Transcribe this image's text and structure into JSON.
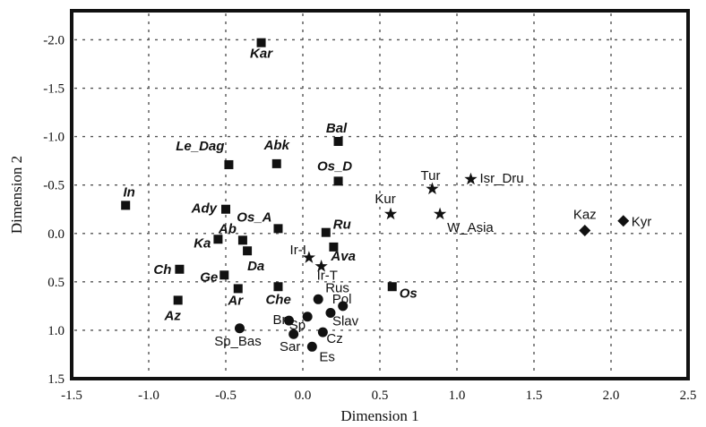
{
  "chart_data": {
    "type": "scatter",
    "xlabel": "Dimension 1",
    "ylabel": "Dimension 2",
    "xlim": [
      -1.5,
      2.5
    ],
    "ylim": [
      1.5,
      -2.3
    ],
    "y_reversed": true,
    "grid": true,
    "grid_style": "dashed",
    "legend": "none",
    "x_ticks": [
      -1.5,
      -1.0,
      -0.5,
      0.0,
      0.5,
      1.0,
      1.5,
      2.0,
      2.5
    ],
    "x_tick_labels": [
      "-1.5",
      "-1.0",
      "-0.5",
      "0.0",
      "0.5",
      "1.0",
      "1.5",
      "2.0",
      "2.5"
    ],
    "y_ticks": [
      -2.0,
      -1.5,
      -1.0,
      -0.5,
      0.0,
      0.5,
      1.0,
      1.5
    ],
    "y_tick_labels": [
      "-2.0",
      "-1.5",
      "-1.0",
      "-0.5",
      "0.0",
      "0.5",
      "1.0",
      "1.5"
    ],
    "series": [
      {
        "marker": "square",
        "color": "#111111",
        "points": [
          {
            "label": "Kar",
            "x": -0.27,
            "y": -1.97,
            "bold_italic": true
          },
          {
            "label": "Bal",
            "x": 0.23,
            "y": -0.95,
            "bold_italic": true
          },
          {
            "label": "Le_Dag",
            "x": -0.48,
            "y": -0.71,
            "bold_italic": true
          },
          {
            "label": "Abk",
            "x": -0.17,
            "y": -0.72,
            "bold_italic": true
          },
          {
            "label": "Os_D",
            "x": 0.23,
            "y": -0.54,
            "bold_italic": true
          },
          {
            "label": "In",
            "x": -1.15,
            "y": -0.29,
            "bold_italic": true
          },
          {
            "label": "Ady",
            "x": -0.5,
            "y": -0.25,
            "bold_italic": true
          },
          {
            "label": "Os_A",
            "x": -0.16,
            "y": -0.05,
            "bold_italic": true
          },
          {
            "label": "Ru",
            "x": 0.15,
            "y": -0.01,
            "bold_italic": true
          },
          {
            "label": "Ab",
            "x": -0.39,
            "y": 0.07,
            "bold_italic": true
          },
          {
            "label": "Ka",
            "x": -0.55,
            "y": 0.06,
            "bold_italic": true
          },
          {
            "label": "Ava",
            "x": 0.2,
            "y": 0.14,
            "bold_italic": true
          },
          {
            "label": "Da",
            "x": -0.36,
            "y": 0.18,
            "bold_italic": true
          },
          {
            "label": "Ch",
            "x": -0.8,
            "y": 0.37,
            "bold_italic": true
          },
          {
            "label": "Ge",
            "x": -0.51,
            "y": 0.43,
            "bold_italic": true
          },
          {
            "label": "Ar",
            "x": -0.42,
            "y": 0.57,
            "bold_italic": true
          },
          {
            "label": "Che",
            "x": -0.16,
            "y": 0.55,
            "bold_italic": true
          },
          {
            "label": "Os",
            "x": 0.58,
            "y": 0.55,
            "bold_italic": true
          },
          {
            "label": "Az",
            "x": -0.81,
            "y": 0.69,
            "bold_italic": true
          }
        ]
      },
      {
        "marker": "circle",
        "color": "#111111",
        "points": [
          {
            "label": "Rus",
            "x": 0.1,
            "y": 0.68
          },
          {
            "label": "Pol",
            "x": 0.26,
            "y": 0.75
          },
          {
            "label": "Slav",
            "x": 0.18,
            "y": 0.82
          },
          {
            "label": "Br",
            "x": -0.09,
            "y": 0.9
          },
          {
            "label": "Sp",
            "x": 0.03,
            "y": 0.86
          },
          {
            "label": "Sp_Bas",
            "x": -0.41,
            "y": 0.98
          },
          {
            "label": "Sar",
            "x": -0.06,
            "y": 1.04
          },
          {
            "label": "Cz",
            "x": 0.13,
            "y": 1.02
          },
          {
            "label": "Es",
            "x": 0.06,
            "y": 1.17
          }
        ]
      },
      {
        "marker": "star",
        "color": "#111111",
        "points": [
          {
            "label": "Tur",
            "x": 0.84,
            "y": -0.46
          },
          {
            "label": "Isr_Dru",
            "x": 1.09,
            "y": -0.56
          },
          {
            "label": "Kur",
            "x": 0.57,
            "y": -0.2
          },
          {
            "label": "W_Asia",
            "x": 0.89,
            "y": -0.2
          },
          {
            "label": "Ir-I",
            "x": 0.04,
            "y": 0.25
          },
          {
            "label": "Ir-T",
            "x": 0.12,
            "y": 0.34
          }
        ]
      },
      {
        "marker": "diamond",
        "color": "#111111",
        "points": [
          {
            "label": "Kaz",
            "x": 1.83,
            "y": -0.03
          },
          {
            "label": "Kyr",
            "x": 2.08,
            "y": -0.13
          }
        ]
      }
    ]
  }
}
